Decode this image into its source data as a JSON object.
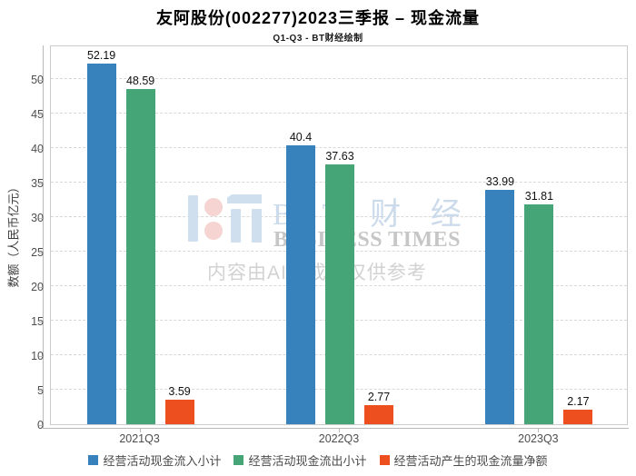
{
  "chart_data": {
    "type": "bar",
    "title": "友阿股份(002277)2023三季报 – 现金流量",
    "subtitle": "Q1-Q3 - BT财经绘制",
    "ylabel": "数额（人民币亿元）",
    "xlabel": "",
    "categories": [
      "2021Q3",
      "2022Q3",
      "2023Q3"
    ],
    "series": [
      {
        "name": "经营活动现金流入小计",
        "color": "#3781bd",
        "values": [
          52.19,
          40.4,
          33.99
        ]
      },
      {
        "name": "经营活动现金流出小计",
        "color": "#46a576",
        "values": [
          48.59,
          37.63,
          31.81
        ]
      },
      {
        "name": "经营活动产生的现金流量净额",
        "color": "#ee4f1f",
        "values": [
          3.59,
          2.77,
          2.17
        ]
      }
    ],
    "ylim": [
      0,
      55
    ],
    "ytick_step": 5,
    "yticks": [
      0,
      5,
      10,
      15,
      20,
      25,
      30,
      35,
      40,
      45,
      50
    ],
    "grid": true,
    "gridline_style": "dashed",
    "legend_position": "bottom",
    "value_labels_shown": true
  },
  "watermark": {
    "brand_cn": "B T 财 经",
    "brand_en": "BUSINESS TIMES",
    "disclaimer": "内容由AI生成，仅供参考",
    "logo_blue": "#cfdfee",
    "logo_pink": "#f5d4d2"
  },
  "colors": {
    "axis_line": "#b9b9b9",
    "plot_border": "#cbcbcb",
    "gridline": "#d8d8d8",
    "tick_text": "#4d4d4d",
    "value_label_text": "#111111",
    "title_text": "#000000"
  }
}
